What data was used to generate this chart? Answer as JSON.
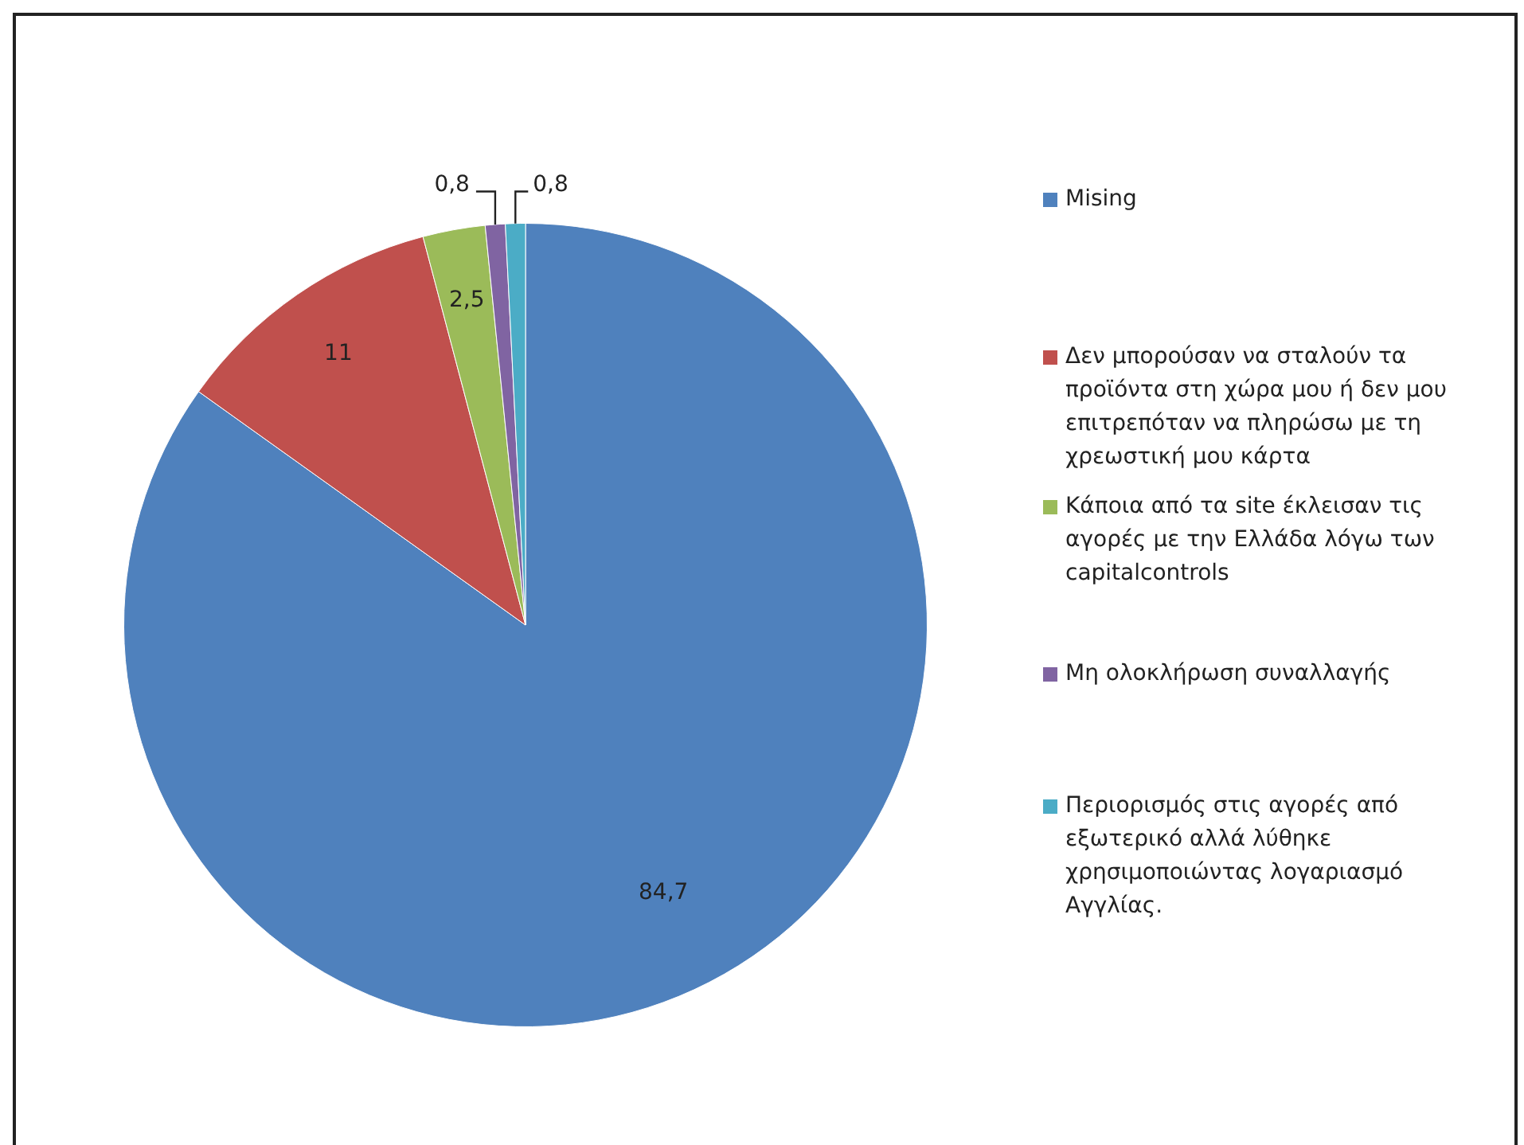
{
  "chart_data": {
    "type": "pie",
    "categories": [
      "Mising",
      "Δεν μπορούσαν να σταλούν τα προϊόντα στη χώρα μου ή δεν μου επιτρεπόταν να πληρώσω με τη χρεωστική μου κάρτα",
      "Κάποια από τα site έκλεισαν τις αγορές με την Ελλάδα λόγω των capitalcontrols",
      "Μη ολοκλήρωση συναλλαγής",
      "Περιορισμός στις αγορές από εξωτερικό αλλά λύθηκε χρησιμοποιώντας λογαριασμό Αγγλίας."
    ],
    "values": [
      84.7,
      11,
      2.5,
      0.8,
      0.8
    ],
    "value_labels": [
      "84,7",
      "11",
      "2,5",
      "0,8",
      "0,8"
    ],
    "colors": [
      "#4f81bd",
      "#c0504d",
      "#9bbb59",
      "#8064a2",
      "#4bacc6"
    ],
    "legend": "right"
  }
}
